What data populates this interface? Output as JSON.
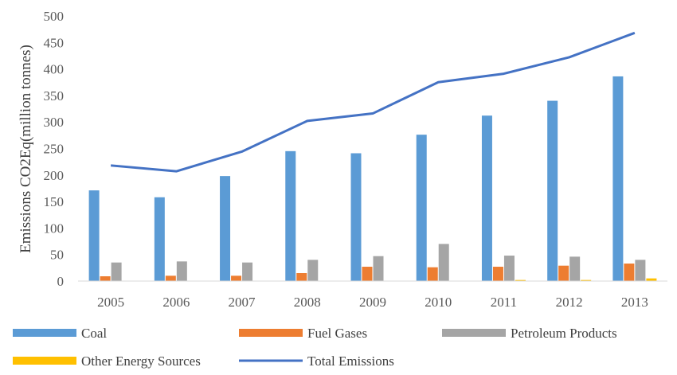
{
  "chart_data": {
    "type": "bar",
    "title": "",
    "xlabel": "",
    "ylabel": "Emissions CO2Eq(million tonnes)",
    "ylim": [
      0,
      500
    ],
    "yticks": [
      0,
      50,
      100,
      150,
      200,
      250,
      300,
      350,
      400,
      450,
      500
    ],
    "grid": false,
    "legend_position": "bottom",
    "categories": [
      "2005",
      "2006",
      "2007",
      "2008",
      "2009",
      "2010",
      "2011",
      "2012",
      "2013"
    ],
    "series": [
      {
        "name": "Coal",
        "type": "bar",
        "color": "#5B9BD5",
        "values": [
          171,
          158,
          198,
          245,
          241,
          276,
          312,
          340,
          386
        ]
      },
      {
        "name": "Fuel Gases",
        "type": "bar",
        "color": "#ED7D31",
        "values": [
          9,
          10,
          10,
          15,
          27,
          26,
          27,
          29,
          33
        ]
      },
      {
        "name": "Petroleum Products",
        "type": "bar",
        "color": "#A5A5A5",
        "values": [
          35,
          37,
          35,
          40,
          47,
          70,
          48,
          46,
          40
        ]
      },
      {
        "name": "Other Energy Sources",
        "type": "bar",
        "color": "#FFC000",
        "values": [
          0.5,
          0.5,
          0.5,
          0.5,
          0.5,
          0.5,
          2,
          2,
          5
        ]
      },
      {
        "name": "Total Emissions",
        "type": "line",
        "color": "#4472C4",
        "values": [
          218,
          207,
          244,
          302,
          316,
          375,
          391,
          422,
          468
        ]
      }
    ]
  }
}
